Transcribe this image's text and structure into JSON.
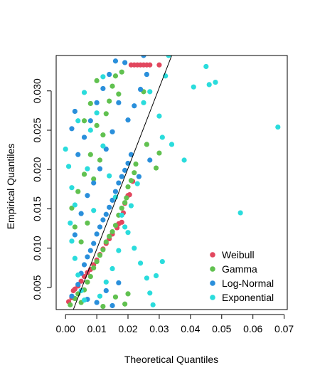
{
  "chart_data": {
    "type": "scatter",
    "title": "",
    "xlabel": "Theoretical Quantiles",
    "ylabel": "Empirical Quantiles",
    "xlim": [
      -0.003,
      0.071
    ],
    "ylim": [
      0.0022,
      0.0345
    ],
    "xticks": [
      0.0,
      0.01,
      0.02,
      0.03,
      0.04,
      0.05,
      0.06,
      0.07
    ],
    "xtick_labels": [
      "0.00",
      "0.01",
      "0.02",
      "0.03",
      "0.04",
      "0.05",
      "0.06",
      "0.07"
    ],
    "yticks": [
      0.005,
      0.01,
      0.015,
      0.02,
      0.025,
      0.03
    ],
    "ytick_labels": [
      "0.005",
      "0.010",
      "0.015",
      "0.020",
      "0.025",
      "0.030"
    ],
    "grid": false,
    "legend_position": "bottom-right",
    "reference_line": {
      "x": [
        0.0025,
        0.034
      ],
      "y": [
        0.0022,
        0.0345
      ]
    },
    "series": [
      {
        "name": "Weibull",
        "color": "#E2475E",
        "points": [
          [
            0.001,
            0.0032
          ],
          [
            0.002,
            0.0037
          ],
          [
            0.0025,
            0.0046
          ],
          [
            0.003,
            0.0048
          ],
          [
            0.004,
            0.0052
          ],
          [
            0.005,
            0.0058
          ],
          [
            0.006,
            0.0064
          ],
          [
            0.007,
            0.0069
          ],
          [
            0.008,
            0.0073
          ],
          [
            0.009,
            0.0079
          ],
          [
            0.01,
            0.0085
          ],
          [
            0.011,
            0.0092
          ],
          [
            0.012,
            0.0099
          ],
          [
            0.013,
            0.0106
          ],
          [
            0.014,
            0.0112
          ],
          [
            0.015,
            0.0118
          ],
          [
            0.0165,
            0.0126
          ],
          [
            0.017,
            0.0131
          ],
          [
            0.018,
            0.0133
          ],
          [
            0.0185,
            0.0145
          ],
          [
            0.019,
            0.0157
          ],
          [
            0.02,
            0.0167
          ],
          [
            0.0205,
            0.0168
          ],
          [
            0.0215,
            0.0185
          ],
          [
            0.021,
            0.0333
          ],
          [
            0.022,
            0.0333
          ],
          [
            0.023,
            0.0333
          ],
          [
            0.024,
            0.0333
          ],
          [
            0.025,
            0.0333
          ],
          [
            0.026,
            0.0333
          ],
          [
            0.027,
            0.0333
          ],
          [
            0.03,
            0.0333
          ]
        ]
      },
      {
        "name": "Gamma",
        "color": "#61C150",
        "points": [
          [
            0.0015,
            0.0028
          ],
          [
            0.003,
            0.0036
          ],
          [
            0.004,
            0.0042
          ],
          [
            0.005,
            0.0031
          ],
          [
            0.006,
            0.0047
          ],
          [
            0.007,
            0.0057
          ],
          [
            0.008,
            0.0064
          ],
          [
            0.009,
            0.0075
          ],
          [
            0.01,
            0.0083
          ],
          [
            0.011,
            0.0091
          ],
          [
            0.012,
            0.0098
          ],
          [
            0.013,
            0.0108
          ],
          [
            0.014,
            0.0115
          ],
          [
            0.015,
            0.0121
          ],
          [
            0.016,
            0.0129
          ],
          [
            0.017,
            0.0142
          ],
          [
            0.018,
            0.0151
          ],
          [
            0.019,
            0.0158
          ],
          [
            0.0195,
            0.0164
          ],
          [
            0.02,
            0.0178
          ],
          [
            0.021,
            0.0186
          ],
          [
            0.022,
            0.0196
          ],
          [
            0.0225,
            0.0207
          ],
          [
            0.025,
            0.0299
          ],
          [
            0.026,
            0.0232
          ],
          [
            0.029,
            0.0202
          ],
          [
            0.03,
            0.0221
          ],
          [
            0.014,
            0.0287
          ],
          [
            0.016,
            0.0319
          ],
          [
            0.018,
            0.0324
          ],
          [
            0.01,
            0.0256
          ],
          [
            0.008,
            0.0219
          ],
          [
            0.006,
            0.0194
          ],
          [
            0.004,
            0.0172
          ],
          [
            0.002,
            0.0151
          ],
          [
            0.005,
            0.0108
          ],
          [
            0.007,
            0.0132
          ],
          [
            0.009,
            0.0188
          ],
          [
            0.011,
            0.0212
          ],
          [
            0.012,
            0.0244
          ],
          [
            0.013,
            0.0271
          ],
          [
            0.015,
            0.0306
          ],
          [
            0.017,
            0.0296
          ],
          [
            0.003,
            0.0127
          ],
          [
            0.006,
            0.0262
          ],
          [
            0.008,
            0.0284
          ],
          [
            0.01,
            0.0313
          ],
          [
            0.019,
            0.0029
          ],
          [
            0.016,
            0.0038
          ],
          [
            0.012,
            0.0026
          ],
          [
            0.02,
            0.0042
          ]
        ]
      },
      {
        "name": "Log-Normal",
        "color": "#2A8FDB",
        "points": [
          [
            0.002,
            0.0039
          ],
          [
            0.004,
            0.0054
          ],
          [
            0.005,
            0.0068
          ],
          [
            0.006,
            0.0079
          ],
          [
            0.007,
            0.0089
          ],
          [
            0.008,
            0.0097
          ],
          [
            0.009,
            0.0106
          ],
          [
            0.01,
            0.0118
          ],
          [
            0.011,
            0.0127
          ],
          [
            0.012,
            0.0136
          ],
          [
            0.013,
            0.0143
          ],
          [
            0.014,
            0.0152
          ],
          [
            0.015,
            0.0161
          ],
          [
            0.016,
            0.0172
          ],
          [
            0.017,
            0.0183
          ],
          [
            0.018,
            0.0191
          ],
          [
            0.019,
            0.0199
          ],
          [
            0.02,
            0.0208
          ],
          [
            0.021,
            0.0219
          ],
          [
            0.0235,
            0.0191
          ],
          [
            0.027,
            0.0212
          ],
          [
            0.025,
            0.0345
          ],
          [
            0.026,
            0.0321
          ],
          [
            0.024,
            0.0302
          ],
          [
            0.022,
            0.0281
          ],
          [
            0.02,
            0.0263
          ],
          [
            0.019,
            0.0336
          ],
          [
            0.017,
            0.0285
          ],
          [
            0.015,
            0.0248
          ],
          [
            0.013,
            0.0226
          ],
          [
            0.011,
            0.0201
          ],
          [
            0.009,
            0.0183
          ],
          [
            0.007,
            0.0167
          ],
          [
            0.005,
            0.0144
          ],
          [
            0.003,
            0.0117
          ],
          [
            0.004,
            0.0219
          ],
          [
            0.006,
            0.0241
          ],
          [
            0.008,
            0.0262
          ],
          [
            0.01,
            0.0285
          ],
          [
            0.012,
            0.0303
          ],
          [
            0.014,
            0.0321
          ],
          [
            0.016,
            0.0338
          ],
          [
            0.002,
            0.0252
          ],
          [
            0.003,
            0.0274
          ],
          [
            0.01,
            0.0031
          ],
          [
            0.013,
            0.0046
          ],
          [
            0.015,
            0.0027
          ],
          [
            0.017,
            0.0056
          ],
          [
            0.007,
            0.0035
          ]
        ]
      },
      {
        "name": "Exponential",
        "color": "#2ADCDC",
        "points": [
          [
            0.0,
            0.0226
          ],
          [
            0.001,
            0.0204
          ],
          [
            0.002,
            0.0177
          ],
          [
            0.003,
            0.0155
          ],
          [
            0.0015,
            0.0132
          ],
          [
            0.002,
            0.0109
          ],
          [
            0.003,
            0.0087
          ],
          [
            0.004,
            0.0066
          ],
          [
            0.005,
            0.0046
          ],
          [
            0.006,
            0.0034
          ],
          [
            0.008,
            0.025
          ],
          [
            0.01,
            0.0272
          ],
          [
            0.012,
            0.023
          ],
          [
            0.014,
            0.0192
          ],
          [
            0.016,
            0.0165
          ],
          [
            0.018,
            0.0142
          ],
          [
            0.02,
            0.012
          ],
          [
            0.022,
            0.01
          ],
          [
            0.024,
            0.0081
          ],
          [
            0.026,
            0.0062
          ],
          [
            0.027,
            0.0043
          ],
          [
            0.028,
            0.0028
          ],
          [
            0.03,
            0.0268
          ],
          [
            0.031,
            0.0241
          ],
          [
            0.033,
            0.0345
          ],
          [
            0.032,
            0.0319
          ],
          [
            0.034,
            0.0232
          ],
          [
            0.038,
            0.0212
          ],
          [
            0.041,
            0.0305
          ],
          [
            0.045,
            0.0331
          ],
          [
            0.046,
            0.0308
          ],
          [
            0.048,
            0.0311
          ],
          [
            0.056,
            0.0145
          ],
          [
            0.068,
            0.0254
          ],
          [
            0.027,
            0.0299
          ],
          [
            0.025,
            0.0285
          ],
          [
            0.023,
            0.0182
          ],
          [
            0.021,
            0.0154
          ],
          [
            0.019,
            0.0127
          ],
          [
            0.017,
            0.0097
          ],
          [
            0.015,
            0.0074
          ],
          [
            0.013,
            0.0057
          ],
          [
            0.011,
            0.0039
          ],
          [
            0.009,
            0.0148
          ],
          [
            0.007,
            0.0201
          ],
          [
            0.006,
            0.0298
          ],
          [
            0.004,
            0.0262
          ],
          [
            0.012,
            0.0318
          ],
          [
            0.029,
            0.0065
          ],
          [
            0.031,
            0.0083
          ]
        ]
      }
    ]
  }
}
